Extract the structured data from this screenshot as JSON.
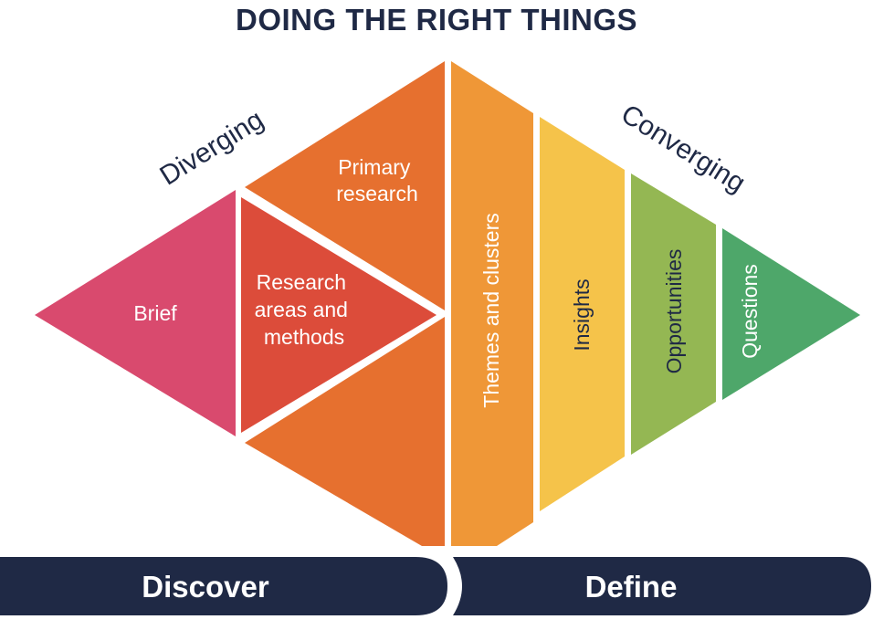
{
  "title": "DOING THE RIGHT THINGS",
  "side_labels": {
    "left": "Diverging",
    "right": "Converging"
  },
  "segments": {
    "brief": {
      "label": "Brief",
      "color": "#d94a6e"
    },
    "research_areas": {
      "lines": [
        "Research",
        "areas and",
        "methods"
      ],
      "color": "#dc4c3a"
    },
    "primary_research": {
      "lines": [
        "Primary",
        "research"
      ],
      "color": "#e6702f"
    },
    "themes": {
      "label": "Themes and clusters",
      "color": "#ef9737"
    },
    "insights": {
      "label": "Insights",
      "color": "#f5c34a"
    },
    "opportunities": {
      "label": "Opportunities",
      "color": "#94b753"
    },
    "questions": {
      "label": "Questions",
      "color": "#4ea76a"
    }
  },
  "phases": {
    "discover": "Discover",
    "define": "Define",
    "color": "#1f2945"
  }
}
